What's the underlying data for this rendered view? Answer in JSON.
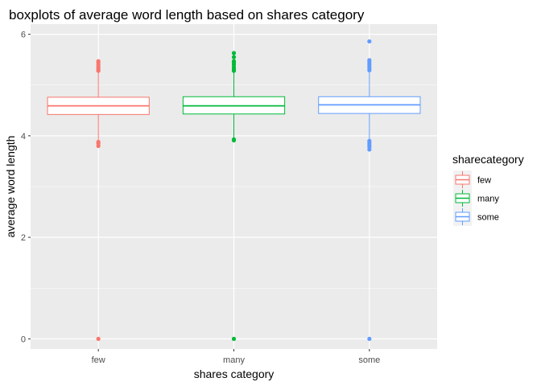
{
  "chart_data": {
    "type": "boxplot",
    "title": "boxplots of average word length based on shares category",
    "xlabel": "shares category",
    "ylabel": "average word length",
    "ylim": [
      -0.2,
      6.2
    ],
    "yticks": [
      0,
      2,
      4,
      6
    ],
    "categories": [
      "few",
      "many",
      "some"
    ],
    "grid": true,
    "legend": {
      "title": "sharecategory",
      "position": "right",
      "entries": [
        "few",
        "many",
        "some"
      ]
    },
    "colors": {
      "few": "#F8766D",
      "many": "#00BA38",
      "some": "#619CFF"
    },
    "series": [
      {
        "category": "few",
        "q1": 4.42,
        "median": 4.59,
        "q3": 4.76,
        "whisker_low": 3.92,
        "whisker_high": 5.25,
        "outliers": [
          0,
          3.8,
          3.85,
          3.88,
          5.28,
          5.3,
          5.33,
          5.36,
          5.4,
          5.44,
          5.47
        ]
      },
      {
        "category": "many",
        "q1": 4.43,
        "median": 4.59,
        "q3": 4.77,
        "whisker_low": 3.93,
        "whisker_high": 5.26,
        "outliers": [
          0,
          3.91,
          3.93,
          5.28,
          5.31,
          5.35,
          5.4,
          5.44,
          5.47,
          5.55,
          5.63
        ]
      },
      {
        "category": "some",
        "q1": 4.44,
        "median": 4.61,
        "q3": 4.77,
        "whisker_low": 3.93,
        "whisker_high": 5.27,
        "outliers": [
          0,
          3.73,
          3.78,
          3.82,
          3.86,
          3.9,
          5.29,
          5.33,
          5.37,
          5.41,
          5.45,
          5.49,
          5.86
        ]
      }
    ]
  }
}
